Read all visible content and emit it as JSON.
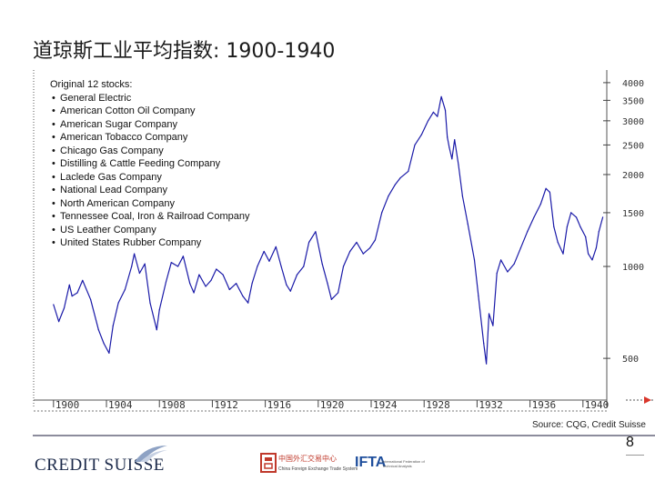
{
  "slide": {
    "title": "道琼斯工业平均指数: 1900-1940",
    "source": "Source: CQG, Credit Suisse",
    "page_number": "8",
    "footer": {
      "brand": "CREDIT SUISSE",
      "partner_cn": "中国外汇交易中心",
      "partner_sub": "China Foreign Exchange Trade System",
      "ifta": "IFTA",
      "ifta_sub": "International Federation of Technical Analysts"
    }
  },
  "stock_list": {
    "header": "Original 12 stocks:",
    "items": [
      "General Electric",
      "American Cotton Oil Company",
      "American Sugar Company",
      "American Tobacco Company",
      "Chicago Gas Company",
      "Distilling & Cattle Feeding Company",
      "Laclede Gas Company",
      "National Lead Company",
      "North American Company",
      "Tennessee Coal, Iron & Railroad Company",
      "US Leather Company",
      "United States Rubber Company"
    ]
  },
  "colors": {
    "line": "#1a1aa8",
    "accent": "#d9362b",
    "axis": "#444444"
  },
  "chart_data": {
    "type": "line",
    "title": "道琼斯工业平均指数: 1900-1940",
    "xlabel": "",
    "ylabel": "",
    "y_scale": "log",
    "ylim": [
      365,
      4400
    ],
    "xlim": [
      1898.5,
      1941.8
    ],
    "x_ticks": [
      "1900",
      "1904",
      "1908",
      "1912",
      "1916",
      "1920",
      "1924",
      "1928",
      "1932",
      "1936",
      "1940"
    ],
    "y_ticks": [
      500,
      1000,
      1500,
      2000,
      2500,
      3000,
      3500,
      4000
    ],
    "y_tick_labels": [
      "500",
      "1000",
      "1500",
      "2000",
      "2500",
      "3000",
      "3500",
      "4000"
    ],
    "legend": "none",
    "grid": false,
    "series": [
      {
        "x": [
          1900.0,
          1900.4,
          1900.8,
          1901.2,
          1901.4,
          1901.8,
          1902.2,
          1902.8,
          1903.4,
          1903.8,
          1904.2,
          1904.5,
          1904.9,
          1905.4,
          1905.9,
          1906.1,
          1906.5,
          1906.9,
          1907.3,
          1907.8,
          1908.0,
          1908.5,
          1908.9,
          1909.4,
          1909.8,
          1910.3,
          1910.6,
          1911.0,
          1911.5,
          1911.9,
          1912.3,
          1912.8,
          1913.3,
          1913.8,
          1914.3,
          1914.7,
          1915.0,
          1915.4,
          1915.9,
          1916.3,
          1916.8,
          1917.2,
          1917.6,
          1917.9,
          1918.4,
          1918.9,
          1919.3,
          1919.8,
          1920.3,
          1920.7,
          1921.0,
          1921.5,
          1921.9,
          1922.4,
          1922.9,
          1923.4,
          1923.9,
          1924.3,
          1924.8,
          1925.3,
          1925.8,
          1926.2,
          1926.8,
          1927.3,
          1927.8,
          1928.3,
          1928.7,
          1929.0,
          1929.3,
          1929.6,
          1929.75,
          1929.9,
          1930.1,
          1930.3,
          1930.6,
          1930.9,
          1931.3,
          1931.8,
          1932.1,
          1932.5,
          1932.7,
          1932.9,
          1933.2,
          1933.5,
          1933.8,
          1934.3,
          1934.8,
          1935.3,
          1935.8,
          1936.3,
          1936.8,
          1937.2,
          1937.5,
          1937.8,
          1938.1,
          1938.5,
          1938.8,
          1939.1,
          1939.5,
          1939.8,
          1940.2,
          1940.4,
          1940.7,
          1941.0,
          1941.2,
          1941.5
        ],
        "y": [
          750,
          660,
          730,
          870,
          800,
          820,
          900,
          780,
          620,
          560,
          520,
          640,
          760,
          840,
          1000,
          1100,
          950,
          1020,
          760,
          620,
          720,
          890,
          1030,
          1000,
          1080,
          880,
          820,
          940,
          860,
          900,
          980,
          940,
          840,
          880,
          800,
          760,
          880,
          1000,
          1120,
          1040,
          1160,
          1000,
          870,
          830,
          940,
          1000,
          1200,
          1300,
          1020,
          880,
          780,
          820,
          1000,
          1120,
          1200,
          1100,
          1150,
          1220,
          1500,
          1700,
          1850,
          1950,
          2050,
          2500,
          2700,
          3000,
          3200,
          3100,
          3600,
          3250,
          2650,
          2450,
          2250,
          2600,
          2150,
          1700,
          1380,
          1050,
          800,
          560,
          480,
          700,
          640,
          950,
          1050,
          960,
          1020,
          1150,
          1300,
          1450,
          1600,
          1800,
          1750,
          1350,
          1200,
          1100,
          1350,
          1500,
          1450,
          1350,
          1250,
          1100,
          1050,
          1150,
          1300,
          1450
        ]
      }
    ]
  }
}
